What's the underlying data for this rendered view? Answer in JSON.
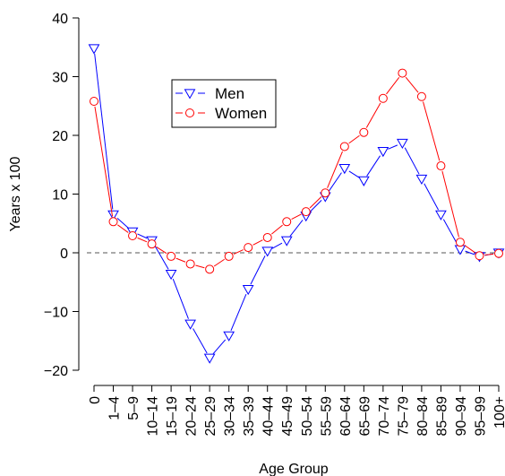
{
  "chart_data": {
    "type": "line",
    "title": "",
    "xlabel": "Age Group",
    "ylabel": "Years x 100",
    "ylim": [
      -20,
      40
    ],
    "yticks": [
      "40",
      "30",
      "20",
      "10",
      "0",
      "−10",
      "−20"
    ],
    "categories": [
      "0",
      "1–4",
      "5–9",
      "10–14",
      "15–19",
      "20–24",
      "25–29",
      "30–34",
      "35–39",
      "40–44",
      "45–49",
      "50–54",
      "55–59",
      "60–64",
      "65–69",
      "70–74",
      "75–79",
      "80–84",
      "85–89",
      "90–94",
      "95–99",
      "100+"
    ],
    "series": [
      {
        "name": "Men",
        "color": "#0000ff",
        "marker": "triangle-down",
        "values": [
          34.8,
          6.5,
          3.6,
          2.1,
          -3.6,
          -12.1,
          -17.9,
          -14.1,
          -6.2,
          0.3,
          2.1,
          6.3,
          9.6,
          14.4,
          12.3,
          17.3,
          18.7,
          12.6,
          6.5,
          0.6,
          -0.6,
          0.0
        ]
      },
      {
        "name": "Women",
        "color": "#ff0000",
        "marker": "circle-open",
        "values": [
          25.8,
          5.3,
          2.9,
          1.5,
          -0.6,
          -1.9,
          -2.8,
          -0.6,
          0.9,
          2.6,
          5.3,
          7.0,
          10.2,
          18.1,
          20.5,
          26.3,
          30.6,
          26.6,
          14.8,
          1.8,
          -0.5,
          -0.1
        ]
      }
    ],
    "reference_line": {
      "y": 0,
      "style": "dashed",
      "color": "#555555"
    },
    "legend_position": "upper-left-center",
    "grid": false
  }
}
